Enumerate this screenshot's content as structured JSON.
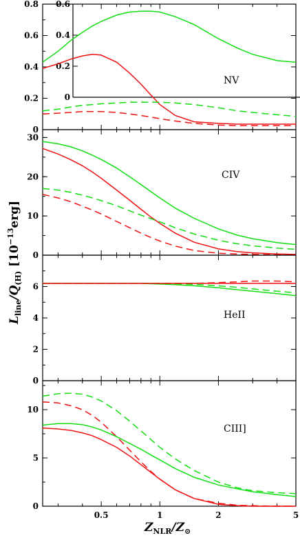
{
  "colors": {
    "solar": "#ee1111",
    "alt": "#11dd11",
    "axis": "#000000"
  },
  "xlabel": {
    "main": "Z",
    "sub": "NLR",
    "sep": "/",
    "main2": "Z",
    "sub2": "⊙"
  },
  "ylabel": {
    "main": "L",
    "sub": "line",
    "sep": "/",
    "main2": "Q",
    "sub2": "(H)",
    "unit_open": "[10",
    "unit_exp": "−13",
    "unit_close": "erg]"
  },
  "chart_data": [
    {
      "type": "line",
      "panel": "NV",
      "xscale": "log",
      "xlim": [
        0.25,
        5
      ],
      "ylim": [
        0,
        0.8
      ],
      "yticks": [
        "0",
        "0.2",
        "0.4",
        "0.6",
        "0.8"
      ],
      "xticks": [
        "0.5",
        "1",
        "2",
        "5"
      ],
      "x": [
        0.25,
        0.3,
        0.35,
        0.4,
        0.45,
        0.5,
        0.6,
        0.7,
        0.8,
        0.9,
        1.0,
        1.2,
        1.5,
        2.0,
        2.5,
        3.0,
        4.0,
        5.0
      ],
      "series": [
        {
          "color": "alt",
          "dash": false,
          "values": [
            0.43,
            0.5,
            0.57,
            0.62,
            0.66,
            0.69,
            0.73,
            0.75,
            0.755,
            0.755,
            0.75,
            0.72,
            0.67,
            0.58,
            0.52,
            0.48,
            0.44,
            0.43
          ]
        },
        {
          "color": "solar",
          "dash": false,
          "values": [
            0.39,
            0.42,
            0.45,
            0.47,
            0.48,
            0.475,
            0.43,
            0.36,
            0.29,
            0.22,
            0.16,
            0.09,
            0.05,
            0.04,
            0.035,
            0.035,
            0.035,
            0.035
          ]
        },
        {
          "color": "alt",
          "dash": true,
          "values": [
            0.12,
            0.13,
            0.145,
            0.155,
            0.16,
            0.165,
            0.17,
            0.175,
            0.175,
            0.175,
            0.175,
            0.17,
            0.16,
            0.14,
            0.12,
            0.11,
            0.095,
            0.085
          ]
        },
        {
          "color": "solar",
          "dash": true,
          "values": [
            0.1,
            0.105,
            0.11,
            0.115,
            0.115,
            0.115,
            0.11,
            0.1,
            0.09,
            0.08,
            0.07,
            0.055,
            0.04,
            0.03,
            0.025,
            0.025,
            0.025,
            0.025
          ]
        }
      ],
      "inset": {
        "ylim": [
          0,
          0.6
        ],
        "yticks": [
          "0",
          "0.2",
          "0.4",
          "0.6"
        ]
      }
    },
    {
      "type": "line",
      "panel": "CIV",
      "xscale": "log",
      "xlim": [
        0.25,
        5
      ],
      "ylim": [
        0,
        32
      ],
      "yticks": [
        "0",
        "10",
        "20",
        "30"
      ],
      "xticks": [
        "0.5",
        "1",
        "2",
        "5"
      ],
      "x": [
        0.25,
        0.3,
        0.35,
        0.4,
        0.45,
        0.5,
        0.6,
        0.7,
        0.8,
        0.9,
        1.0,
        1.2,
        1.5,
        2.0,
        2.5,
        3.0,
        4.0,
        5.0
      ],
      "series": [
        {
          "color": "alt",
          "dash": false,
          "values": [
            29,
            28.4,
            27.6,
            26.6,
            25.5,
            24.4,
            22.2,
            20.0,
            18.0,
            16.2,
            14.6,
            12.0,
            9.4,
            6.7,
            5.1,
            4.2,
            3.2,
            2.7
          ]
        },
        {
          "color": "solar",
          "dash": false,
          "values": [
            27.2,
            25.8,
            24.3,
            22.8,
            21.2,
            19.6,
            16.6,
            14.0,
            11.7,
            9.7,
            8.1,
            5.6,
            3.3,
            1.6,
            0.9,
            0.6,
            0.3,
            0.2
          ]
        },
        {
          "color": "alt",
          "dash": true,
          "values": [
            17.0,
            16.6,
            16.0,
            15.3,
            14.6,
            13.9,
            12.6,
            11.3,
            10.2,
            9.3,
            8.5,
            7.0,
            5.4,
            3.8,
            2.9,
            2.4,
            1.8,
            1.5
          ]
        },
        {
          "color": "solar",
          "dash": true,
          "values": [
            15.5,
            14.6,
            13.6,
            12.5,
            11.5,
            10.5,
            8.6,
            7.0,
            5.6,
            4.5,
            3.6,
            2.3,
            1.2,
            0.5,
            0.3,
            0.2,
            0.1,
            0.1
          ]
        }
      ]
    },
    {
      "type": "line",
      "panel": "HeII",
      "xscale": "log",
      "xlim": [
        0.25,
        5
      ],
      "ylim": [
        0,
        8
      ],
      "yticks": [
        "0",
        "2",
        "4",
        "6"
      ],
      "xticks": [
        "0.5",
        "1",
        "2",
        "5"
      ],
      "x": [
        0.25,
        0.3,
        0.35,
        0.4,
        0.45,
        0.5,
        0.6,
        0.7,
        0.8,
        0.9,
        1.0,
        1.2,
        1.5,
        2.0,
        2.5,
        3.0,
        4.0,
        5.0
      ],
      "series": [
        {
          "color": "alt",
          "dash": false,
          "values": [
            6.2,
            6.2,
            6.2,
            6.2,
            6.2,
            6.2,
            6.2,
            6.2,
            6.2,
            6.18,
            6.16,
            6.12,
            6.05,
            5.92,
            5.8,
            5.7,
            5.55,
            5.42
          ]
        },
        {
          "color": "solar",
          "dash": false,
          "values": [
            6.2,
            6.2,
            6.2,
            6.2,
            6.2,
            6.2,
            6.2,
            6.2,
            6.2,
            6.2,
            6.2,
            6.2,
            6.2,
            6.2,
            6.2,
            6.2,
            6.2,
            6.2
          ]
        },
        {
          "color": "alt",
          "dash": true,
          "values": [
            6.2,
            6.2,
            6.2,
            6.2,
            6.2,
            6.2,
            6.2,
            6.2,
            6.2,
            6.2,
            6.2,
            6.18,
            6.14,
            6.05,
            5.95,
            5.85,
            5.7,
            5.6
          ]
        },
        {
          "color": "solar",
          "dash": true,
          "values": [
            6.2,
            6.2,
            6.2,
            6.2,
            6.2,
            6.2,
            6.2,
            6.2,
            6.2,
            6.2,
            6.2,
            6.2,
            6.2,
            6.25,
            6.3,
            6.35,
            6.35,
            6.3
          ]
        }
      ]
    },
    {
      "type": "line",
      "panel": "CIII]",
      "xscale": "log",
      "xlim": [
        0.25,
        5
      ],
      "ylim": [
        0,
        13
      ],
      "yticks": [
        "0",
        "5",
        "10"
      ],
      "xticks": [
        "0.5",
        "1",
        "2",
        "5"
      ],
      "x": [
        0.25,
        0.3,
        0.35,
        0.4,
        0.45,
        0.5,
        0.6,
        0.7,
        0.8,
        0.9,
        1.0,
        1.2,
        1.5,
        2.0,
        2.5,
        3.0,
        4.0,
        5.0
      ],
      "series": [
        {
          "color": "alt",
          "dash": true,
          "values": [
            11.4,
            11.65,
            11.7,
            11.6,
            11.3,
            10.9,
            9.9,
            8.8,
            7.8,
            6.9,
            6.1,
            4.9,
            3.7,
            2.5,
            1.9,
            1.6,
            1.4,
            1.3
          ]
        },
        {
          "color": "solar",
          "dash": true,
          "values": [
            10.8,
            10.7,
            10.4,
            10.0,
            9.4,
            8.7,
            7.2,
            5.8,
            4.6,
            3.6,
            2.8,
            1.7,
            0.8,
            0.3,
            0.1,
            0.05,
            0.0,
            0.0
          ]
        },
        {
          "color": "alt",
          "dash": false,
          "values": [
            8.4,
            8.55,
            8.55,
            8.45,
            8.2,
            7.9,
            7.2,
            6.5,
            5.9,
            5.3,
            4.8,
            3.9,
            3.0,
            2.2,
            1.8,
            1.5,
            1.2,
            1.0
          ]
        },
        {
          "color": "solar",
          "dash": false,
          "values": [
            8.1,
            8.0,
            7.85,
            7.6,
            7.3,
            6.9,
            6.1,
            5.2,
            4.3,
            3.5,
            2.8,
            1.7,
            0.8,
            0.2,
            0.05,
            0.0,
            0.0,
            0.0
          ]
        }
      ]
    }
  ],
  "panel_labels": [
    "NV",
    "CIV",
    "HeII",
    "CIII]"
  ]
}
